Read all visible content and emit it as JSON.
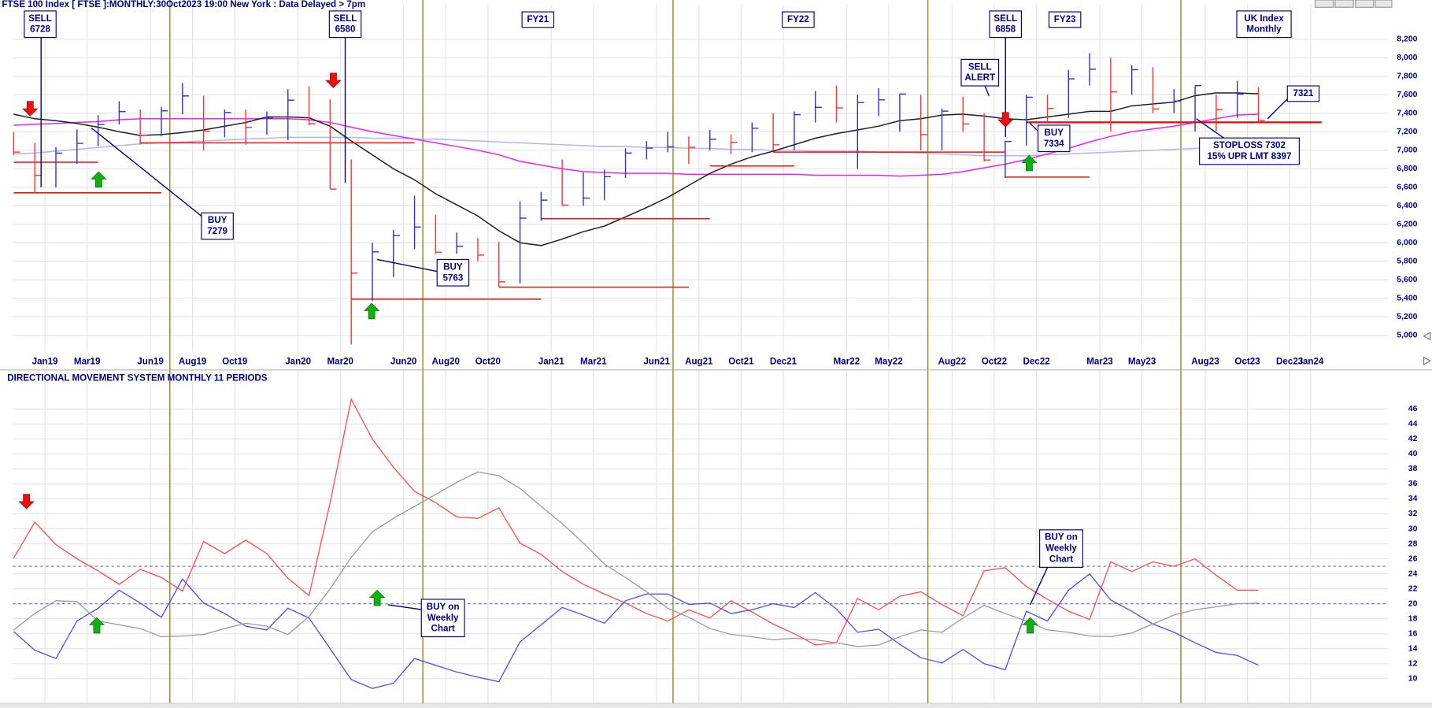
{
  "chart_data": [
    {
      "type": "ohlc",
      "title": "FTSE 100 Index [ FTSE ]:MONTHLY:30Oct2023 19:00 New York : Data Delayed > 7pm",
      "x": [
        "2018-11",
        "2018-12",
        "2019-01",
        "2019-02",
        "2019-03",
        "2019-04",
        "2019-05",
        "2019-06",
        "2019-07",
        "2019-08",
        "2019-09",
        "2019-10",
        "2019-11",
        "2019-12",
        "2020-01",
        "2020-02",
        "2020-03",
        "2020-04",
        "2020-05",
        "2020-06",
        "2020-07",
        "2020-08",
        "2020-09",
        "2020-10",
        "2020-11",
        "2020-12",
        "2021-01",
        "2021-02",
        "2021-03",
        "2021-04",
        "2021-05",
        "2021-06",
        "2021-07",
        "2021-08",
        "2021-09",
        "2021-10",
        "2021-11",
        "2021-12",
        "2022-01",
        "2022-02",
        "2022-03",
        "2022-04",
        "2022-05",
        "2022-06",
        "2022-07",
        "2022-08",
        "2022-09",
        "2022-10",
        "2022-11",
        "2022-12",
        "2023-01",
        "2023-02",
        "2023-03",
        "2023-04",
        "2023-05",
        "2023-06",
        "2023-07",
        "2023-08",
        "2023-09",
        "2023-10"
      ],
      "high": [
        7195,
        7080,
        7034,
        7226,
        7380,
        7530,
        7440,
        7470,
        7727,
        7590,
        7440,
        7440,
        7420,
        7660,
        7690,
        7550,
        6900,
        6000,
        6140,
        6510,
        6300,
        6110,
        6050,
        6010,
        6450,
        6550,
        6900,
        6760,
        6790,
        7020,
        7100,
        7200,
        7150,
        7220,
        7170,
        7300,
        7400,
        7420,
        7640,
        7700,
        7600,
        7670,
        7610,
        7600,
        7450,
        7580,
        7400,
        7100,
        7600,
        7600,
        7870,
        8050,
        8000,
        7920,
        7900,
        7660,
        7700,
        7600,
        7750,
        7680
      ],
      "low": [
        6948,
        6537,
        6599,
        6855,
        7045,
        7280,
        7062,
        7150,
        7390,
        7000,
        7140,
        7060,
        7170,
        7110,
        7270,
        6580,
        4899,
        5370,
        5630,
        5930,
        5880,
        5880,
        5800,
        5520,
        5560,
        6240,
        6400,
        6400,
        6460,
        6700,
        6900,
        6980,
        6850,
        7000,
        6960,
        6980,
        7000,
        7000,
        7300,
        7300,
        6800,
        7370,
        7200,
        7000,
        7000,
        7200,
        6880,
        6700,
        7050,
        7300,
        7350,
        7700,
        7200,
        7600,
        7400,
        7400,
        7200,
        7210,
        7350,
        7300
      ],
      "close": [
        6980,
        6728,
        6969,
        7075,
        7279,
        7418,
        7162,
        7426,
        7587,
        7207,
        7408,
        7248,
        7347,
        7542,
        7286,
        6580,
        5672,
        5901,
        6077,
        6170,
        5898,
        5963,
        5866,
        5577,
        6266,
        6461,
        6407,
        6483,
        6714,
        6970,
        7023,
        7037,
        7032,
        7120,
        7086,
        7238,
        7059,
        7385,
        7464,
        7458,
        7516,
        7545,
        7608,
        7169,
        7423,
        7284,
        6894,
        7095,
        7573,
        7452,
        7772,
        7876,
        7632,
        7871,
        7446,
        7532,
        7699,
        7439,
        7608,
        7321
      ],
      "up_color": "#2f2fd0",
      "down_color": "#ff3030",
      "overlays": [
        {
          "color": "#202020",
          "values": [
            7390,
            7340,
            7320,
            7290,
            7250,
            7200,
            7160,
            7170,
            7190,
            7220,
            7260,
            7300,
            7360,
            7360,
            7350,
            7260,
            7100,
            6950,
            6800,
            6680,
            6530,
            6410,
            6290,
            6130,
            6000,
            5970,
            6040,
            6120,
            6180,
            6280,
            6380,
            6490,
            6620,
            6750,
            6850,
            6930,
            6990,
            7060,
            7130,
            7180,
            7220,
            7260,
            7320,
            7340,
            7380,
            7390,
            7370,
            7340,
            7330,
            7360,
            7390,
            7420,
            7420,
            7480,
            7500,
            7520,
            7590,
            7620,
            7620,
            7610
          ]
        },
        {
          "color": "#ee22ee",
          "values": [
            7270,
            7280,
            7290,
            7300,
            7310,
            7330,
            7340,
            7340,
            7340,
            7340,
            7340,
            7340,
            7340,
            7340,
            7330,
            7300,
            7250,
            7200,
            7160,
            7120,
            7080,
            7040,
            7000,
            6950,
            6880,
            6840,
            6800,
            6770,
            6760,
            6750,
            6750,
            6750,
            6740,
            6740,
            6740,
            6740,
            6740,
            6740,
            6730,
            6730,
            6730,
            6730,
            6720,
            6730,
            6740,
            6770,
            6810,
            6850,
            6900,
            6960,
            7020,
            7090,
            7150,
            7200,
            7230,
            7260,
            7300,
            7340,
            7380,
            7390
          ]
        },
        {
          "color": "#b4b4ee",
          "values": [
            6960,
            6970,
            6990,
            7010,
            7030,
            7050,
            7070,
            7080,
            7090,
            7100,
            7110,
            7120,
            7130,
            7140,
            7140,
            7140,
            7140,
            7130,
            7130,
            7120,
            7120,
            7110,
            7100,
            7090,
            7080,
            7070,
            7060,
            7050,
            7040,
            7040,
            7030,
            7030,
            7020,
            7020,
            7010,
            7010,
            7000,
            7000,
            6990,
            6990,
            6990,
            6980,
            6980,
            6970,
            6960,
            6950,
            6940,
            6940,
            6940,
            6950,
            6960,
            6970,
            6980,
            6990,
            7000,
            7010,
            7020,
            7030,
            7030,
            7040
          ]
        }
      ],
      "level_color": "#ee1111",
      "levels": [
        {
          "value": 6870,
          "from": "2018-11",
          "to": "2019-03"
        },
        {
          "value": 6540,
          "from": "2018-11",
          "to": "2019-06"
        },
        {
          "value": 7080,
          "from": "2019-05",
          "to": "2020-06"
        },
        {
          "value": 5390,
          "from": "2020-03",
          "to": "2020-12"
        },
        {
          "value": 5520,
          "from": "2020-10",
          "to": "2021-07"
        },
        {
          "value": 6260,
          "from": "2020-12",
          "to": "2021-08"
        },
        {
          "value": 6830,
          "from": "2021-08",
          "to": "2021-12"
        },
        {
          "value": 6980,
          "from": "2021-11",
          "to": "2022-10"
        },
        {
          "value": 6710,
          "from": "2022-10",
          "to": "2023-02"
        },
        {
          "value": 7302,
          "from": "2022-11",
          "to": "2024-01"
        }
      ],
      "annotations": [
        {
          "lines": [
            "SELL",
            "6728"
          ]
        },
        {
          "lines": [
            "SELL",
            "6580"
          ]
        },
        {
          "lines": [
            "FY21"
          ]
        },
        {
          "lines": [
            "FY22"
          ]
        },
        {
          "lines": [
            "SELL",
            "6858"
          ]
        },
        {
          "lines": [
            "FY23"
          ]
        },
        {
          "lines": [
            "UK Index",
            "Monthly"
          ]
        },
        {
          "lines": [
            "SELL",
            "ALERT"
          ]
        },
        {
          "lines": [
            "BUY",
            "7279"
          ]
        },
        {
          "lines": [
            "BUY",
            "5763"
          ]
        },
        {
          "lines": [
            "BUY",
            "7334"
          ]
        },
        {
          "lines": [
            "7321"
          ]
        },
        {
          "lines": [
            "STOPLOSS 7302",
            "15% UPR LMT 8397"
          ]
        }
      ],
      "xticks": [
        {
          "value": "2019-01",
          "label": "Jan19"
        },
        {
          "value": "2019-03",
          "label": "Mar19"
        },
        {
          "value": "2019-06",
          "label": "Jun19"
        },
        {
          "value": "2019-08",
          "label": "Aug19"
        },
        {
          "value": "2019-10",
          "label": "Oct19"
        },
        {
          "value": "2020-01",
          "label": "Jan20"
        },
        {
          "value": "2020-03",
          "label": "Mar20"
        },
        {
          "value": "2020-06",
          "label": "Jun20"
        },
        {
          "value": "2020-08",
          "label": "Aug20"
        },
        {
          "value": "2020-10",
          "label": "Oct20"
        },
        {
          "value": "2021-01",
          "label": "Jan21"
        },
        {
          "value": "2021-03",
          "label": "Mar21"
        },
        {
          "value": "2021-06",
          "label": "Jun21"
        },
        {
          "value": "2021-08",
          "label": "Aug21"
        },
        {
          "value": "2021-10",
          "label": "Oct21"
        },
        {
          "value": "2021-12",
          "label": "Dec21"
        },
        {
          "value": "2022-03",
          "label": "Mar22"
        },
        {
          "value": "2022-05",
          "label": "May22"
        },
        {
          "value": "2022-08",
          "label": "Aug22"
        },
        {
          "value": "2022-10",
          "label": "Oct22"
        },
        {
          "value": "2022-12",
          "label": "Dec22"
        },
        {
          "value": "2023-03",
          "label": "Mar23"
        },
        {
          "value": "2023-05",
          "label": "May23"
        },
        {
          "value": "2023-08",
          "label": "Aug23"
        },
        {
          "value": "2023-10",
          "label": "Oct23"
        },
        {
          "value": "2023-12",
          "label": "Dec23"
        },
        {
          "value": "2024-01",
          "label": "Jan24"
        }
      ],
      "ylim": [
        4822,
        8575
      ],
      "yticks": [
        {
          "value": 5000,
          "label": "5,000"
        },
        {
          "value": 5200,
          "label": "5,200"
        },
        {
          "value": 5400,
          "label": "5,400"
        },
        {
          "value": 5600,
          "label": "5,600"
        },
        {
          "value": 5800,
          "label": "5,800"
        },
        {
          "value": 6000,
          "label": "6,000"
        },
        {
          "value": 6200,
          "label": "6,200"
        },
        {
          "value": 6400,
          "label": "6,400"
        },
        {
          "value": 6600,
          "label": "6,600"
        },
        {
          "value": 6800,
          "label": "6,800"
        },
        {
          "value": 7000,
          "label": "7,000"
        },
        {
          "value": 7200,
          "label": "7,200"
        },
        {
          "value": 7400,
          "label": "7,400"
        },
        {
          "value": 7600,
          "label": "7,600"
        },
        {
          "value": 7800,
          "label": "7,800"
        },
        {
          "value": 8000,
          "label": "8,000"
        },
        {
          "value": 8200,
          "label": "8,200"
        }
      ],
      "grid": true
    },
    {
      "type": "line",
      "title": "DIRECTIONAL MOVEMENT SYSTEM MONTHLY 11 PERIODS",
      "x": [
        "2018-11",
        "2018-12",
        "2019-01",
        "2019-02",
        "2019-03",
        "2019-04",
        "2019-05",
        "2019-06",
        "2019-07",
        "2019-08",
        "2019-09",
        "2019-10",
        "2019-11",
        "2019-12",
        "2020-01",
        "2020-02",
        "2020-03",
        "2020-04",
        "2020-05",
        "2020-06",
        "2020-07",
        "2020-08",
        "2020-09",
        "2020-10",
        "2020-11",
        "2020-12",
        "2021-01",
        "2021-02",
        "2021-03",
        "2021-04",
        "2021-05",
        "2021-06",
        "2021-07",
        "2021-08",
        "2021-09",
        "2021-10",
        "2021-11",
        "2021-12",
        "2022-01",
        "2022-02",
        "2022-03",
        "2022-04",
        "2022-05",
        "2022-06",
        "2022-07",
        "2022-08",
        "2022-09",
        "2022-10",
        "2022-11",
        "2022-12",
        "2023-01",
        "2023-02",
        "2023-03",
        "2023-04",
        "2023-05",
        "2023-06",
        "2023-07",
        "2023-08",
        "2023-09",
        "2023-10"
      ],
      "series": [
        {
          "color": "#ff4848",
          "values": [
            26.1,
            30.9,
            27.9,
            26,
            24.4,
            22.6,
            24.6,
            23.5,
            21.7,
            28.3,
            26.7,
            28.5,
            26.7,
            23.4,
            21.1,
            33.5,
            47.3,
            42,
            38.2,
            35,
            33.5,
            31.6,
            31.4,
            32.8,
            28.1,
            26.6,
            24.3,
            22.6,
            21.3,
            20.1,
            18.7,
            17.7,
            19.2,
            18.1,
            20.4,
            18.9,
            17.3,
            16,
            14.5,
            14.8,
            20.7,
            19.2,
            21,
            21.6,
            19.9,
            18.4,
            24.4,
            24.8,
            22.3,
            20.6,
            19,
            17.9,
            25.6,
            24.3,
            25.6,
            25,
            26,
            23.8,
            21.8,
            21.8
          ]
        },
        {
          "color": "#4848ff",
          "values": [
            16.3,
            13.8,
            12.7,
            17.7,
            19.4,
            21.8,
            20.1,
            18.2,
            23.3,
            20.1,
            18.7,
            17,
            16.5,
            19.4,
            18.1,
            14,
            9.9,
            8.7,
            9.4,
            12.7,
            11.8,
            10.9,
            10.2,
            9.6,
            14.9,
            17.2,
            19.5,
            18.5,
            17.4,
            20.4,
            21.3,
            21.3,
            19.9,
            20.1,
            18.7,
            19.2,
            20,
            19.5,
            21.5,
            19.3,
            16.2,
            16.6,
            14.6,
            12.8,
            12.1,
            13.9,
            12,
            11.2,
            19,
            17.7,
            21.8,
            24,
            20.5,
            19,
            17.3,
            16.2,
            14.8,
            13.5,
            13.1,
            11.8
          ]
        },
        {
          "color": "#999999",
          "values": [
            16.5,
            18.7,
            20.4,
            20.3,
            17.7,
            17.2,
            16.7,
            15.6,
            15.7,
            15.9,
            16.7,
            17.4,
            17,
            15.9,
            18.3,
            22,
            26.2,
            29.6,
            31.4,
            33,
            34.6,
            36.2,
            37.6,
            37.1,
            35.4,
            33,
            30.7,
            28.1,
            25.3,
            23.5,
            21.6,
            19.4,
            18.2,
            16.7,
            15.9,
            15.6,
            15.2,
            15.4,
            15.2,
            14.8,
            14.3,
            14.5,
            15.6,
            16.5,
            16.2,
            18.1,
            19.8,
            18.7,
            17.7,
            16.5,
            16.2,
            15.7,
            15.6,
            16.1,
            17.3,
            18.5,
            19.2,
            19.6,
            20,
            20.1
          ]
        }
      ],
      "reference_lines": [
        20,
        25
      ],
      "annotations": [
        {
          "lines": [
            "BUY on",
            "Weekly",
            "Chart"
          ]
        },
        {
          "lines": [
            "BUY on",
            "Weekly",
            "Chart"
          ]
        }
      ],
      "ylim": [
        6.7,
        51.2
      ],
      "yticks": [
        10,
        12,
        14,
        16,
        18,
        20,
        22,
        24,
        26,
        28,
        30,
        32,
        34,
        36,
        38,
        40,
        42,
        44,
        46
      ],
      "grid": true
    }
  ]
}
